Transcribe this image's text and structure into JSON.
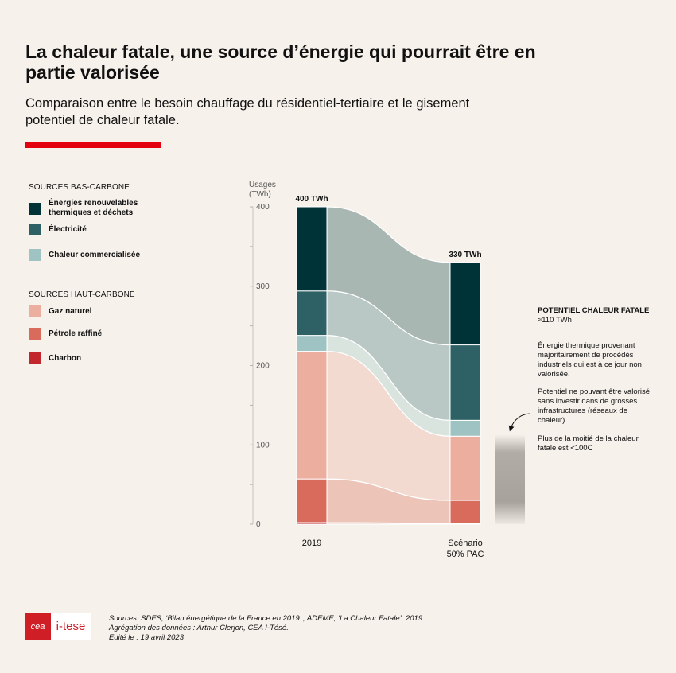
{
  "title": "La chaleur fatale, une source d’énergie qui pourrait être en partie valorisée",
  "subtitle": "Comparaison entre le besoin chauffage du résidentiel-tertiaire et le gisement potentiel de chaleur fatale.",
  "legend": {
    "low_carbon_heading": "SOURCES BAS-CARBONE",
    "high_carbon_heading": "SOURCES HAUT-CARBONE",
    "items": [
      {
        "label": "Énergies renouvelables thermiques et déchets",
        "color": "#003338"
      },
      {
        "label": "Électricité",
        "color": "#2e6165"
      },
      {
        "label": "Chaleur commercialisée",
        "color": "#9ec3c2"
      },
      {
        "label": "Gaz naturel",
        "color": "#ecae9e"
      },
      {
        "label": "Pétrole raffiné",
        "color": "#d96b5d"
      },
      {
        "label": "Charbon",
        "color": "#c1272d"
      }
    ]
  },
  "chart_data": {
    "type": "sankey",
    "ylabel": "Usages (TWh)",
    "ylim": [
      0,
      400
    ],
    "yticks": [
      0,
      100,
      200,
      300,
      400
    ],
    "categories": [
      "2019",
      "Scénario 50% PAC"
    ],
    "totals": [
      "400 TWh",
      "330 TWh"
    ],
    "series": [
      {
        "name": "Charbon",
        "values": [
          2,
          1
        ]
      },
      {
        "name": "Pétrole raffiné",
        "values": [
          55,
          29
        ]
      },
      {
        "name": "Gaz naturel",
        "values": [
          161,
          81
        ]
      },
      {
        "name": "Chaleur commercialisée",
        "values": [
          20,
          20
        ]
      },
      {
        "name": "Électricité",
        "values": [
          56,
          95
        ]
      },
      {
        "name": "Énergies renouvelables thermiques et déchets",
        "values": [
          106,
          104
        ]
      }
    ]
  },
  "callout": {
    "title": "POTENTIEL CHALEUR FATALE",
    "value": "≈110 TWh",
    "p1": "Énergie thermique provenant majoritairement de procédés industriels qui est à ce jour non valorisée.",
    "p2": "Potentiel ne pouvant être valorisé sans investir dans de grosses infrastructures (réseaux de chaleur).",
    "p3": "Plus de la moitié de la chaleur fatale est <100C"
  },
  "footer": {
    "logo_cea": "cea",
    "logo_itese": "i-tese",
    "sources": "Sources: SDES, ‘Bilan énergétique de la France en 2019’ ; ADEME, ‘La Chaleur Fatale’, 2019",
    "aggregation": "Agrégation des données : Arthur Clerjon, CEA I-Tésé.",
    "edited": "Edité le : 19 avril 2023"
  }
}
